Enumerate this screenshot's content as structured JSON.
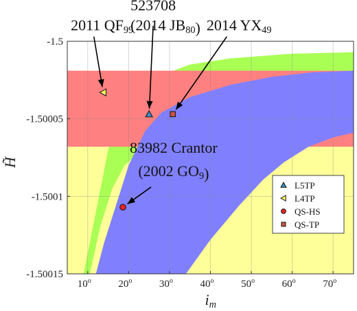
{
  "chart_data": {
    "type": "scatter",
    "title": "",
    "xlabel": {
      "base": "i",
      "sub": "m"
    },
    "ylabel": "H̃",
    "xlim": [
      5,
      75
    ],
    "ylim": [
      -1.50015,
      -1.5
    ],
    "grid": true,
    "legend_position": "lower-right",
    "x_ticks": [
      {
        "value": 10,
        "label": "10",
        "unit": "o"
      },
      {
        "value": 20,
        "label": "20",
        "unit": "o"
      },
      {
        "value": 30,
        "label": "30",
        "unit": "o"
      },
      {
        "value": 40,
        "label": "40",
        "unit": "o"
      },
      {
        "value": 50,
        "label": "50",
        "unit": "o"
      },
      {
        "value": 60,
        "label": "60",
        "unit": "o"
      },
      {
        "value": 70,
        "label": "70",
        "unit": "o"
      }
    ],
    "y_ticks": [
      {
        "value": -1.5,
        "label": "-1.5"
      },
      {
        "value": -1.50005,
        "label": "-1.50005"
      },
      {
        "value": -1.5001,
        "label": "-1.5001"
      },
      {
        "value": -1.50015,
        "label": "-1.50015"
      }
    ],
    "regions": [
      {
        "color": "#ffff99",
        "upper": [
          [
            5,
            -1.500068
          ],
          [
            75,
            -1.500068
          ]
        ],
        "lower": [
          [
            5,
            -1.50015
          ],
          [
            75,
            -1.50015
          ]
        ]
      },
      {
        "color": "#aaff55",
        "upper": [
          [
            9,
            -1.50015
          ],
          [
            12,
            -1.50011
          ],
          [
            15,
            -1.50007
          ],
          [
            18,
            -1.500046
          ],
          [
            22,
            -1.500032
          ],
          [
            28,
            -1.500022
          ],
          [
            35,
            -1.500015
          ],
          [
            45,
            -1.500011
          ],
          [
            60,
            -1.500008
          ],
          [
            75,
            -1.500007
          ]
        ],
        "lower": [
          [
            10.5,
            -1.50015
          ],
          [
            13,
            -1.50012
          ],
          [
            16,
            -1.500095
          ],
          [
            19,
            -1.50008
          ],
          [
            23,
            -1.500071
          ],
          [
            28,
            -1.500068
          ],
          [
            75,
            -1.500068
          ]
        ]
      },
      {
        "color": "#ff8080",
        "upper": [
          [
            5,
            -1.500019
          ],
          [
            75,
            -1.500019
          ]
        ],
        "lower": [
          [
            5,
            -1.500068
          ],
          [
            75,
            -1.500068
          ]
        ]
      },
      {
        "color": "#8080ff",
        "upper": [
          [
            12,
            -1.50015
          ],
          [
            14,
            -1.50013
          ],
          [
            17,
            -1.500105
          ],
          [
            20,
            -1.50008
          ],
          [
            24,
            -1.500058
          ],
          [
            28,
            -1.500046
          ],
          [
            35,
            -1.500036
          ],
          [
            45,
            -1.500028
          ],
          [
            55,
            -1.500023
          ],
          [
            65,
            -1.50002
          ],
          [
            75,
            -1.500019
          ]
        ],
        "lower": [
          [
            34,
            -1.50015
          ],
          [
            40,
            -1.500128
          ],
          [
            47,
            -1.500106
          ],
          [
            53,
            -1.500089
          ],
          [
            58,
            -1.500078
          ],
          [
            64,
            -1.500068
          ],
          [
            70,
            -1.500062
          ],
          [
            75,
            -1.500059
          ]
        ]
      }
    ],
    "series": [
      {
        "name": "L5TP",
        "marker": "triangle-up",
        "color": "#3c8fc9",
        "points": [
          {
            "x": 25,
            "y": -1.500047
          }
        ]
      },
      {
        "name": "L4TP",
        "marker": "triangle-left",
        "color": "#ffff66",
        "points": [
          {
            "x": 13.8,
            "y": -1.500033
          }
        ]
      },
      {
        "name": "QS-HS",
        "marker": "circle",
        "color": "#ee2222",
        "points": [
          {
            "x": 18.6,
            "y": -1.500107
          }
        ]
      },
      {
        "name": "QS-TP",
        "marker": "square",
        "color": "#cc5544",
        "points": [
          {
            "x": 30.8,
            "y": -1.500047
          }
        ]
      }
    ],
    "annotations": [
      {
        "parts": [
          {
            "text": "523708",
            "sub": ""
          }
        ],
        "x": 26,
        "y": -1.49998,
        "arrow_to": {
          "x": 25,
          "y": -1.500047
        },
        "arrow_from": {
          "x": 26,
          "y": -1.49999
        }
      },
      {
        "parts": [
          {
            "text": "2011 QF",
            "sub": "99"
          }
        ],
        "x": 13.5,
        "y": -1.499993,
        "arrow_to": {
          "x": 13.8,
          "y": -1.500033
        },
        "arrow_from": {
          "x": 11.5,
          "y": -1.499997
        }
      },
      {
        "parts": [
          {
            "text": "(2014 JB",
            "sub": "80"
          },
          {
            "text": ")",
            "sub": ""
          }
        ],
        "x": 29,
        "y": -1.499993,
        "arrow_to": null
      },
      {
        "parts": [
          {
            "text": "2014 YX",
            "sub": "49"
          }
        ],
        "x": 47,
        "y": -1.499993,
        "arrow_to": {
          "x": 30.8,
          "y": -1.500047
        },
        "arrow_from": {
          "x": 44,
          "y": -1.499997
        }
      },
      {
        "parts": [
          {
            "text": "83982 Crantor",
            "sub": ""
          }
        ],
        "x": 31,
        "y": -1.500072,
        "arrow_to": null
      },
      {
        "parts": [
          {
            "text": "(2002 GO",
            "sub": "9"
          },
          {
            "text": ")",
            "sub": ""
          }
        ],
        "x": 31,
        "y": -1.500087,
        "arrow_to": {
          "x": 18.6,
          "y": -1.500107
        },
        "arrow_from": {
          "x": 25.5,
          "y": -1.500094
        }
      }
    ]
  }
}
